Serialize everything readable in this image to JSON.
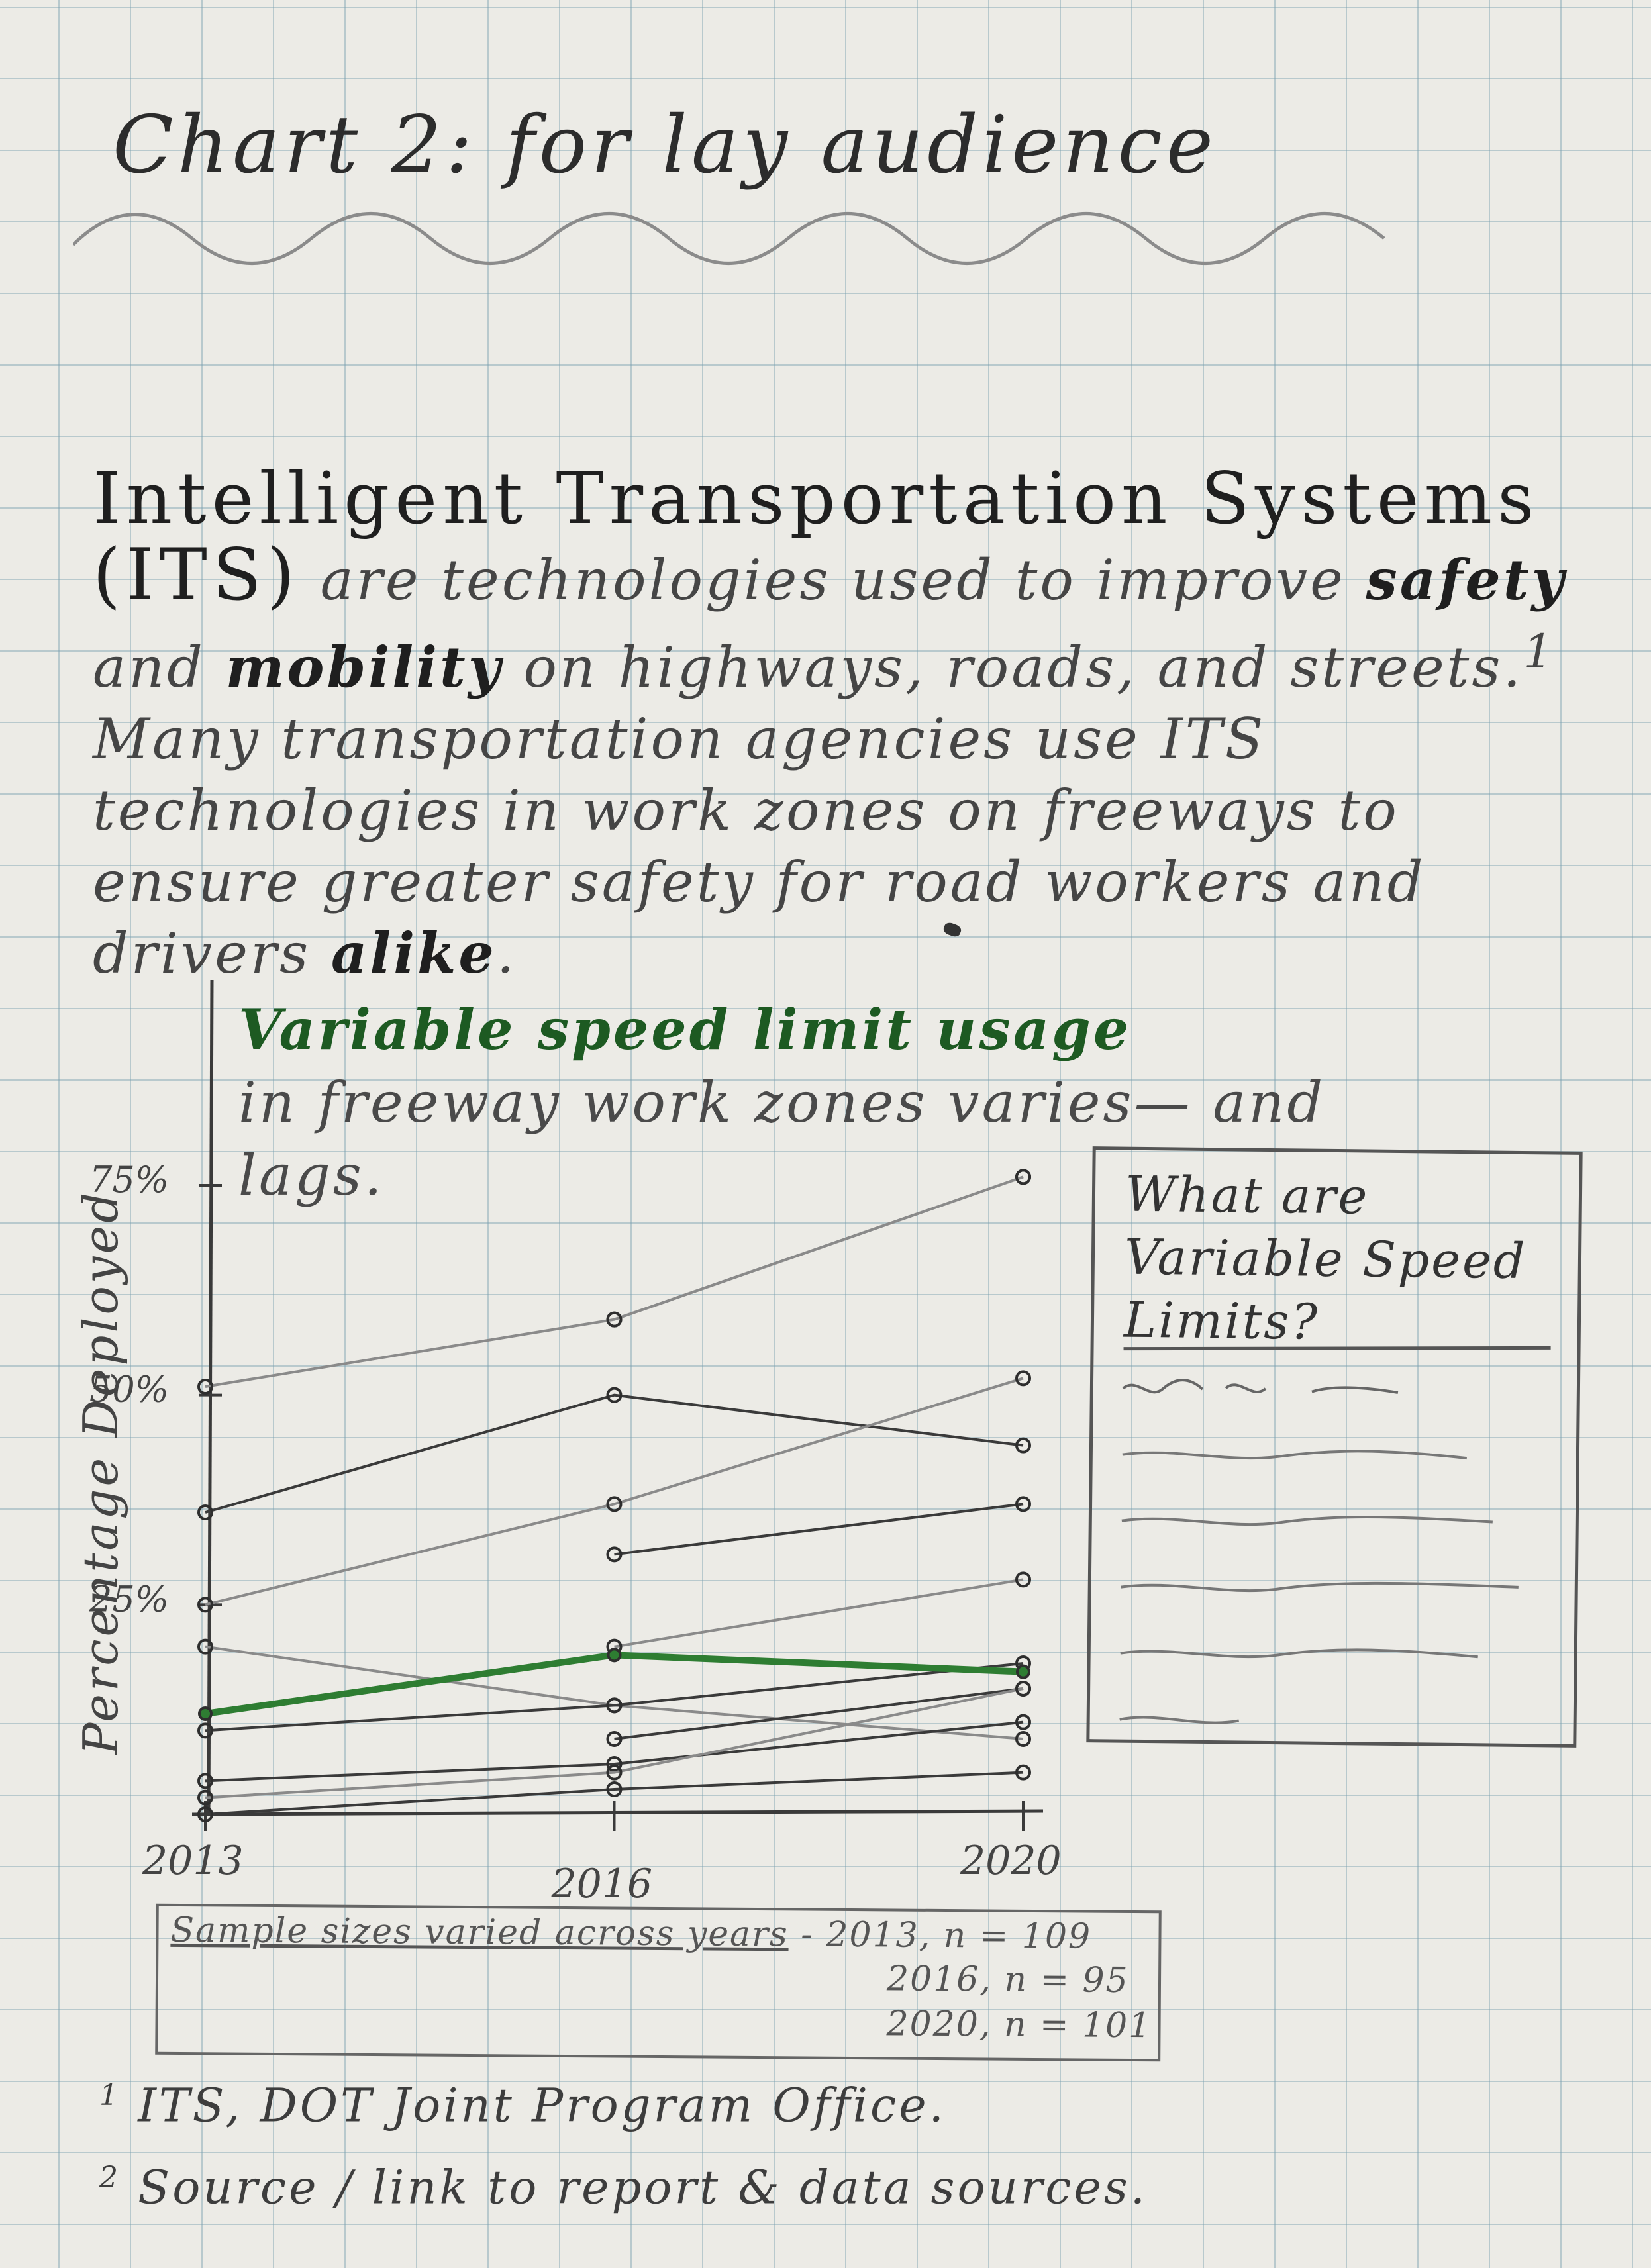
{
  "heading": "Chart 2: for lay audience",
  "intro": {
    "lead": "Intelligent Transportation Systems (ITS)",
    "part1": "are technologies used to improve ",
    "bold1": "safety",
    "part2": " and ",
    "bold2": "mobility",
    "part3": " on highways, roads, and streets.",
    "footnote_mark": "1",
    "part4": " Many transportation agencies use ITS technologies in work zones on freeways to ensure greater safety for road workers and drivers ",
    "bold3": "alike",
    "part5": "."
  },
  "chart_title": {
    "strong": "Variable speed limit usage",
    "rest": "in freeway work zones varies— and lags."
  },
  "sidebar": {
    "title": "What are Variable Speed Limits?"
  },
  "sample_note": {
    "main": "Sample sizes varied across years",
    "line1": "2013, n = 109",
    "line2": "2016, n = 95",
    "line3": "2020, n = 101"
  },
  "footnotes": [
    {
      "mark": "1",
      "text": "ITS, DOT Joint Program Office."
    },
    {
      "mark": "2",
      "text": "Source / link to report & data sources."
    }
  ],
  "colors": {
    "highlight": "#2e7d32",
    "pencil_dark": "#3a3a3a",
    "pencil_light": "#8a8a8a",
    "grid": "#78a0af"
  },
  "chart_data": {
    "type": "line",
    "title": "Variable speed limit usage",
    "subtitle": "in freeway work zones varies— and lags.",
    "xlabel": "",
    "ylabel": "Percentage Deployed",
    "x": [
      "2013",
      "2016",
      "2020"
    ],
    "yticks": [
      "25%",
      "50%",
      "75%"
    ],
    "ylim": [
      0,
      80
    ],
    "series": [
      {
        "values": [
          null,
          59,
          76
        ],
        "style": "light"
      },
      {
        "values": [
          51,
          59,
          76
        ],
        "style": "light"
      },
      {
        "values": [
          36,
          50,
          44
        ],
        "style": "dark"
      },
      {
        "values": [
          25,
          37,
          52
        ],
        "style": "light"
      },
      {
        "values": [
          null,
          31,
          37
        ],
        "style": "dark"
      },
      {
        "values": [
          null,
          20,
          28
        ],
        "style": "light"
      },
      {
        "values": [
          20,
          13,
          9
        ],
        "style": "light"
      },
      {
        "values": [
          10,
          13,
          18
        ],
        "style": "dark"
      },
      {
        "values": [
          null,
          9,
          15
        ],
        "style": "dark"
      },
      {
        "values": [
          4,
          6,
          11
        ],
        "style": "dark"
      },
      {
        "values": [
          2,
          5,
          15
        ],
        "style": "light"
      },
      {
        "values": [
          0,
          3,
          5
        ],
        "style": "dark"
      },
      {
        "values": [
          12,
          19,
          17
        ],
        "style": "highlight"
      }
    ]
  }
}
